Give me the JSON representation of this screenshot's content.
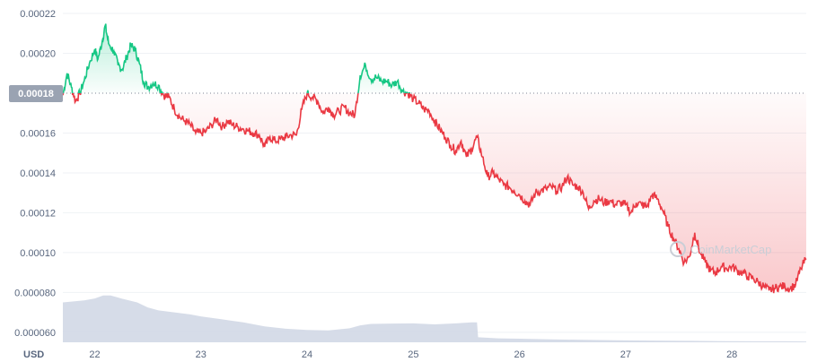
{
  "chart_data": {
    "type": "line",
    "currency_label": "USD",
    "watermark": "CoinMarketCap",
    "reference_label": "0.00018",
    "reference_value": 0.00018,
    "ylim": [
      5.5e-05,
      0.00022
    ],
    "y_ticks": [
      {
        "value": 0.00022,
        "label": "0.00022"
      },
      {
        "value": 0.0002,
        "label": "0.00020"
      },
      {
        "value": 0.00016,
        "label": "0.00016"
      },
      {
        "value": 0.00014,
        "label": "0.00014"
      },
      {
        "value": 0.00012,
        "label": "0.00012"
      },
      {
        "value": 0.0001,
        "label": "0.00010"
      },
      {
        "value": 8e-05,
        "label": "0.000080"
      },
      {
        "value": 6e-05,
        "label": "0.000060"
      }
    ],
    "xlim": [
      21.7,
      28.7
    ],
    "x_ticks": [
      {
        "value": 22,
        "label": "22"
      },
      {
        "value": 23,
        "label": "23"
      },
      {
        "value": 24,
        "label": "24"
      },
      {
        "value": 25,
        "label": "25"
      },
      {
        "value": 26,
        "label": "26"
      },
      {
        "value": 27,
        "label": "27"
      },
      {
        "value": 28,
        "label": "28"
      }
    ],
    "colors": {
      "above": "#16c784",
      "below": "#ea3943",
      "volume": "#cfd6e4",
      "grid": "#eff2f5",
      "reference": "#9aa3b2"
    },
    "series": [
      {
        "values": [
          [
            21.7,
            0.000179
          ],
          [
            21.74,
            0.00019
          ],
          [
            21.78,
            0.000183
          ],
          [
            21.82,
            0.000176
          ],
          [
            21.86,
            0.00018
          ],
          [
            21.9,
            0.000186
          ],
          [
            21.95,
            0.000195
          ],
          [
            22.0,
            0.000202
          ],
          [
            22.03,
            0.000197
          ],
          [
            22.07,
            0.000206
          ],
          [
            22.1,
            0.000214
          ],
          [
            22.13,
            0.000205
          ],
          [
            22.18,
            0.000201
          ],
          [
            22.22,
            0.000194
          ],
          [
            22.26,
            0.000192
          ],
          [
            22.3,
            0.000198
          ],
          [
            22.34,
            0.000204
          ],
          [
            22.38,
            0.000202
          ],
          [
            22.42,
            0.000195
          ],
          [
            22.46,
            0.000186
          ],
          [
            22.5,
            0.000183
          ],
          [
            22.55,
            0.000185
          ],
          [
            22.6,
            0.000184
          ],
          [
            22.65,
            0.000179
          ],
          [
            22.7,
            0.000178
          ],
          [
            22.75,
            0.000172
          ],
          [
            22.8,
            0.000168
          ],
          [
            22.85,
            0.000166
          ],
          [
            22.9,
            0.000164
          ],
          [
            22.95,
            0.00016
          ],
          [
            23.0,
            0.00016
          ],
          [
            23.05,
            0.000161
          ],
          [
            23.1,
            0.000164
          ],
          [
            23.15,
            0.000167
          ],
          [
            23.2,
            0.000163
          ],
          [
            23.25,
            0.000166
          ],
          [
            23.3,
            0.000164
          ],
          [
            23.35,
            0.000163
          ],
          [
            23.4,
            0.000162
          ],
          [
            23.45,
            0.000161
          ],
          [
            23.5,
            0.00016
          ],
          [
            23.55,
            0.000159
          ],
          [
            23.6,
            0.000153
          ],
          [
            23.65,
            0.000158
          ],
          [
            23.7,
            0.000156
          ],
          [
            23.75,
            0.000157
          ],
          [
            23.8,
            0.000158
          ],
          [
            23.85,
            0.000159
          ],
          [
            23.9,
            0.000159
          ],
          [
            23.95,
            0.000172
          ],
          [
            24.0,
            0.00018
          ],
          [
            24.05,
            0.000178
          ],
          [
            24.1,
            0.000176
          ],
          [
            24.15,
            0.00017
          ],
          [
            24.2,
            0.000173
          ],
          [
            24.25,
            0.000169
          ],
          [
            24.3,
            0.000171
          ],
          [
            24.35,
            0.000173
          ],
          [
            24.4,
            0.00017
          ],
          [
            24.45,
            0.000169
          ],
          [
            24.5,
            0.000189
          ],
          [
            24.55,
            0.000194
          ],
          [
            24.6,
            0.000187
          ],
          [
            24.65,
            0.000188
          ],
          [
            24.7,
            0.000186
          ],
          [
            24.75,
            0.000186
          ],
          [
            24.8,
            0.000184
          ],
          [
            24.85,
            0.000186
          ],
          [
            24.9,
            0.000181
          ],
          [
            24.95,
            0.00018
          ],
          [
            25.0,
            0.000177
          ],
          [
            25.05,
            0.000175
          ],
          [
            25.1,
            0.000172
          ],
          [
            25.15,
            0.000171
          ],
          [
            25.2,
            0.000166
          ],
          [
            25.25,
            0.000162
          ],
          [
            25.3,
            0.000158
          ],
          [
            25.35,
            0.000154
          ],
          [
            25.4,
            0.000151
          ],
          [
            25.45,
            0.000156
          ],
          [
            25.5,
            0.000148
          ],
          [
            25.55,
            0.000152
          ],
          [
            25.6,
            0.000158
          ],
          [
            25.65,
            0.000148
          ],
          [
            25.7,
            0.000138
          ],
          [
            25.75,
            0.00014
          ],
          [
            25.8,
            0.000137
          ],
          [
            25.85,
            0.000134
          ],
          [
            25.9,
            0.000133
          ],
          [
            25.95,
            0.000131
          ],
          [
            26.0,
            0.000129
          ],
          [
            26.05,
            0.000126
          ],
          [
            26.1,
            0.000124
          ],
          [
            26.15,
            0.00013
          ],
          [
            26.2,
            0.000131
          ],
          [
            26.25,
            0.000132
          ],
          [
            26.3,
            0.000133
          ],
          [
            26.35,
            0.000131
          ],
          [
            26.4,
            0.000133
          ],
          [
            26.45,
            0.000138
          ],
          [
            26.5,
            0.000134
          ],
          [
            26.55,
            0.000133
          ],
          [
            26.6,
            0.00013
          ],
          [
            26.65,
            0.000122
          ],
          [
            26.7,
            0.000126
          ],
          [
            26.75,
            0.000127
          ],
          [
            26.8,
            0.000125
          ],
          [
            26.85,
            0.000126
          ],
          [
            26.9,
            0.000124
          ],
          [
            26.95,
            0.000125
          ],
          [
            27.0,
            0.000124
          ],
          [
            27.05,
            0.00012
          ],
          [
            27.1,
            0.000125
          ],
          [
            27.15,
            0.000124
          ],
          [
            27.2,
            0.000123
          ],
          [
            27.25,
            0.000129
          ],
          [
            27.3,
            0.000127
          ],
          [
            27.35,
            0.000121
          ],
          [
            27.4,
            0.000113
          ],
          [
            27.45,
            0.000107
          ],
          [
            27.5,
            0.000102
          ],
          [
            27.55,
            9.5e-05
          ],
          [
            27.6,
            9.8e-05
          ],
          [
            27.65,
            0.00011
          ],
          [
            27.7,
            0.0001
          ],
          [
            27.75,
            9.5e-05
          ],
          [
            27.8,
            9.1e-05
          ],
          [
            27.85,
            9e-05
          ],
          [
            27.9,
            9.3e-05
          ],
          [
            27.95,
            9.2e-05
          ],
          [
            28.0,
            9.3e-05
          ],
          [
            28.05,
            9.1e-05
          ],
          [
            28.1,
            9e-05
          ],
          [
            28.15,
            8.8e-05
          ],
          [
            28.2,
            8.7e-05
          ],
          [
            28.25,
            8.5e-05
          ],
          [
            28.3,
            8.3e-05
          ],
          [
            28.35,
            8.1e-05
          ],
          [
            28.4,
            8.2e-05
          ],
          [
            28.45,
            8.3e-05
          ],
          [
            28.5,
            8.3e-05
          ],
          [
            28.55,
            8.2e-05
          ],
          [
            28.6,
            8.4e-05
          ],
          [
            28.65,
            9.2e-05
          ],
          [
            28.7,
            9.7e-05
          ]
        ]
      },
      {
        "values": [
          [
            21.7,
            7.5e-05
          ],
          [
            21.8,
            7.55e-05
          ],
          [
            21.9,
            7.6e-05
          ],
          [
            22.0,
            7.7e-05
          ],
          [
            22.08,
            7.85e-05
          ],
          [
            22.15,
            7.85e-05
          ],
          [
            22.25,
            7.7e-05
          ],
          [
            22.4,
            7.5e-05
          ],
          [
            22.5,
            7.25e-05
          ],
          [
            22.6,
            7.1e-05
          ],
          [
            22.75,
            7e-05
          ],
          [
            22.9,
            6.9e-05
          ],
          [
            23.0,
            6.8e-05
          ],
          [
            23.2,
            6.65e-05
          ],
          [
            23.4,
            6.5e-05
          ],
          [
            23.6,
            6.3e-05
          ],
          [
            23.8,
            6.18e-05
          ],
          [
            24.0,
            6.12e-05
          ],
          [
            24.2,
            6.1e-05
          ],
          [
            24.4,
            6.2e-05
          ],
          [
            24.5,
            6.35e-05
          ],
          [
            24.6,
            6.42e-05
          ],
          [
            24.8,
            6.44e-05
          ],
          [
            25.0,
            6.45e-05
          ],
          [
            25.2,
            6.4e-05
          ],
          [
            25.4,
            6.45e-05
          ],
          [
            25.55,
            6.5e-05
          ],
          [
            25.6,
            6.5e-05
          ],
          [
            25.61,
            5.75e-05
          ],
          [
            25.8,
            5.7e-05
          ],
          [
            26.0,
            5.68e-05
          ],
          [
            26.3,
            5.65e-05
          ],
          [
            26.6,
            5.62e-05
          ],
          [
            26.9,
            5.6e-05
          ],
          [
            27.1,
            5.59e-05
          ],
          [
            27.4,
            5.58e-05
          ],
          [
            27.6,
            5.57e-05
          ],
          [
            27.9,
            5.56e-05
          ],
          [
            28.2,
            5.55e-05
          ],
          [
            28.5,
            5.55e-05
          ],
          [
            28.7,
            5.54e-05
          ]
        ]
      }
    ]
  }
}
